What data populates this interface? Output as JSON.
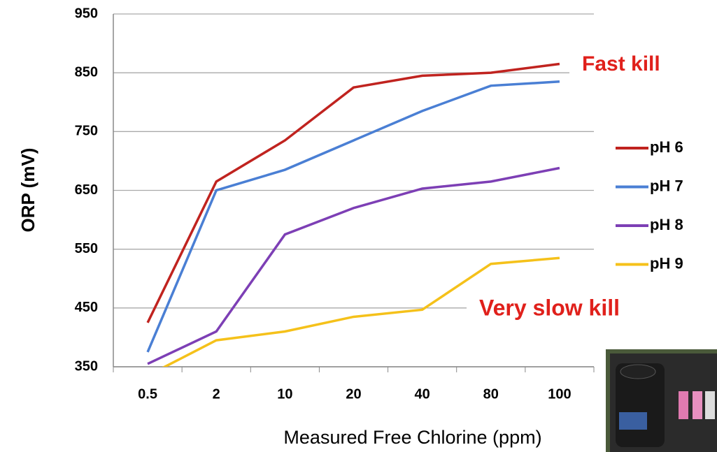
{
  "chart_data": {
    "type": "line",
    "x_label": "Measured Free Chlorine (ppm)",
    "y_label": "ORP (mV)",
    "categories": [
      "0.5",
      "2",
      "10",
      "20",
      "40",
      "80",
      "100"
    ],
    "series": [
      {
        "name": "pH 6",
        "color": "#c0231f",
        "values": [
          425,
          665,
          735,
          825,
          845,
          850,
          865
        ]
      },
      {
        "name": "pH 7",
        "color": "#4a7fd4",
        "values": [
          375,
          650,
          685,
          735,
          785,
          828,
          835
        ]
      },
      {
        "name": "pH 8",
        "color": "#7d3fb5",
        "values": [
          355,
          410,
          575,
          620,
          653,
          665,
          688
        ]
      },
      {
        "name": "pH 9",
        "color": "#f5c11a",
        "values": [
          335,
          395,
          410,
          435,
          447,
          525,
          535
        ]
      }
    ],
    "ylim": [
      350,
      950
    ],
    "yticks": [
      350,
      450,
      550,
      650,
      750,
      850,
      950
    ],
    "grid": true,
    "legend": "right",
    "annotations": [
      {
        "text": "Fast kill",
        "color": "#e0201b"
      },
      {
        "text": "Very slow kill",
        "color": "#e0201b"
      }
    ]
  }
}
